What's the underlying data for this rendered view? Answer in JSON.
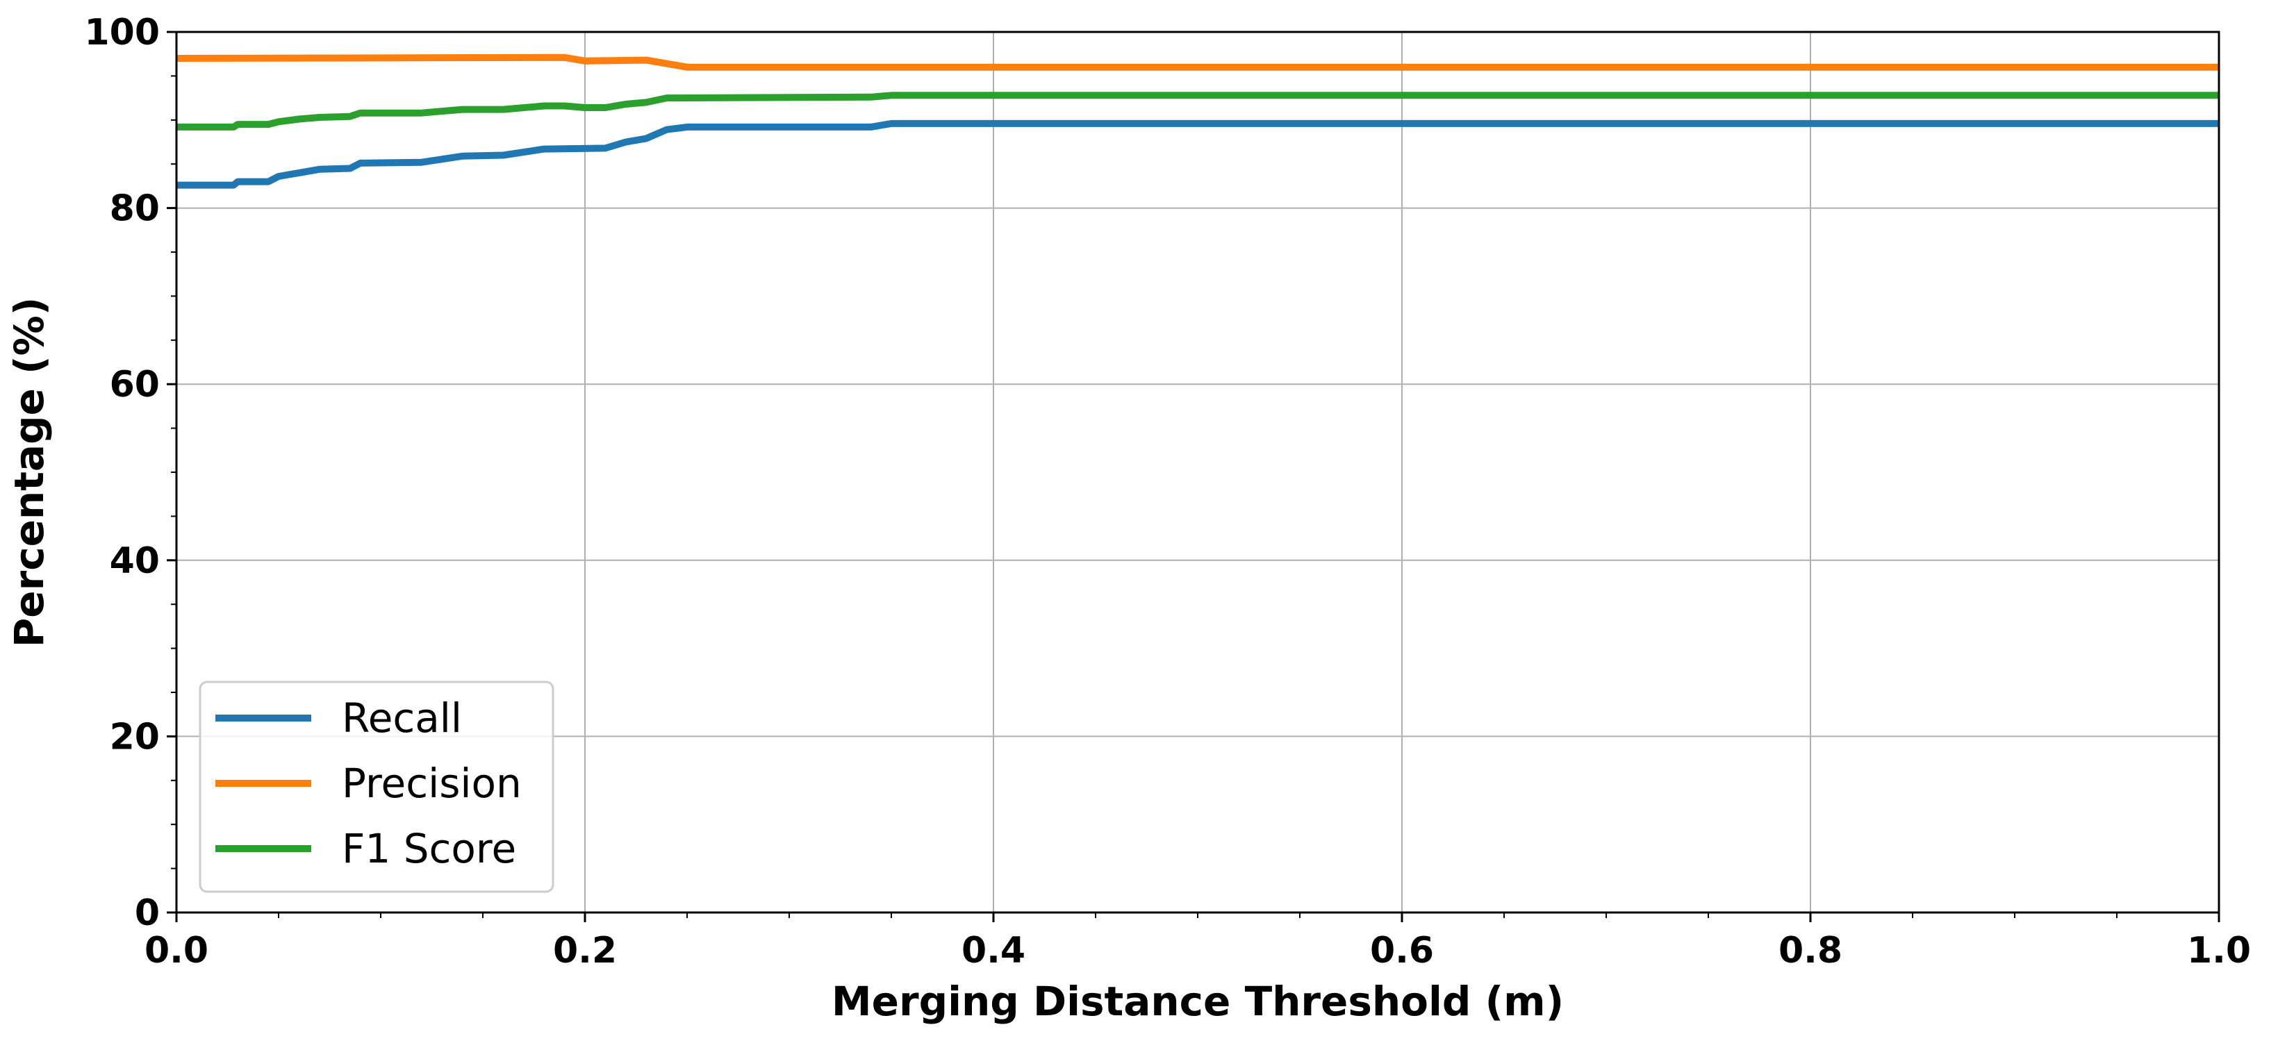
{
  "chart_data": {
    "type": "line",
    "title": "",
    "xlabel": "Merging Distance Threshold (m)",
    "ylabel": "Percentage (%)",
    "xlim": [
      0.0,
      1.0
    ],
    "ylim": [
      0,
      100
    ],
    "x_ticks": [
      "0.0",
      "0.2",
      "0.4",
      "0.6",
      "0.8",
      "1.0"
    ],
    "y_ticks": [
      "0",
      "20",
      "40",
      "60",
      "80",
      "100"
    ],
    "grid": true,
    "legend_position": "lower-left",
    "series": [
      {
        "name": "Recall",
        "color": "#1f77b4",
        "points": [
          [
            0.0,
            82.6
          ],
          [
            0.028,
            82.6
          ],
          [
            0.03,
            83.0
          ],
          [
            0.045,
            83.0
          ],
          [
            0.05,
            83.6
          ],
          [
            0.06,
            84.0
          ],
          [
            0.07,
            84.4
          ],
          [
            0.085,
            84.5
          ],
          [
            0.09,
            85.1
          ],
          [
            0.12,
            85.2
          ],
          [
            0.14,
            85.9
          ],
          [
            0.16,
            86.0
          ],
          [
            0.18,
            86.7
          ],
          [
            0.21,
            86.8
          ],
          [
            0.22,
            87.5
          ],
          [
            0.23,
            87.9
          ],
          [
            0.24,
            88.9
          ],
          [
            0.25,
            89.2
          ],
          [
            0.34,
            89.2
          ],
          [
            0.35,
            89.6
          ],
          [
            1.0,
            89.6
          ]
        ]
      },
      {
        "name": "Precision",
        "color": "#ff7f0e",
        "points": [
          [
            0.0,
            97.0
          ],
          [
            0.19,
            97.1
          ],
          [
            0.2,
            96.7
          ],
          [
            0.23,
            96.8
          ],
          [
            0.25,
            96.0
          ],
          [
            1.0,
            96.0
          ]
        ]
      },
      {
        "name": "F1 Score",
        "color": "#2ca02c",
        "points": [
          [
            0.0,
            89.2
          ],
          [
            0.028,
            89.2
          ],
          [
            0.03,
            89.5
          ],
          [
            0.045,
            89.5
          ],
          [
            0.05,
            89.8
          ],
          [
            0.06,
            90.1
          ],
          [
            0.07,
            90.3
          ],
          [
            0.085,
            90.4
          ],
          [
            0.09,
            90.8
          ],
          [
            0.12,
            90.8
          ],
          [
            0.14,
            91.2
          ],
          [
            0.16,
            91.2
          ],
          [
            0.18,
            91.6
          ],
          [
            0.19,
            91.6
          ],
          [
            0.2,
            91.4
          ],
          [
            0.21,
            91.4
          ],
          [
            0.22,
            91.8
          ],
          [
            0.23,
            92.0
          ],
          [
            0.24,
            92.5
          ],
          [
            0.34,
            92.6
          ],
          [
            0.35,
            92.8
          ],
          [
            1.0,
            92.8
          ]
        ]
      }
    ]
  }
}
